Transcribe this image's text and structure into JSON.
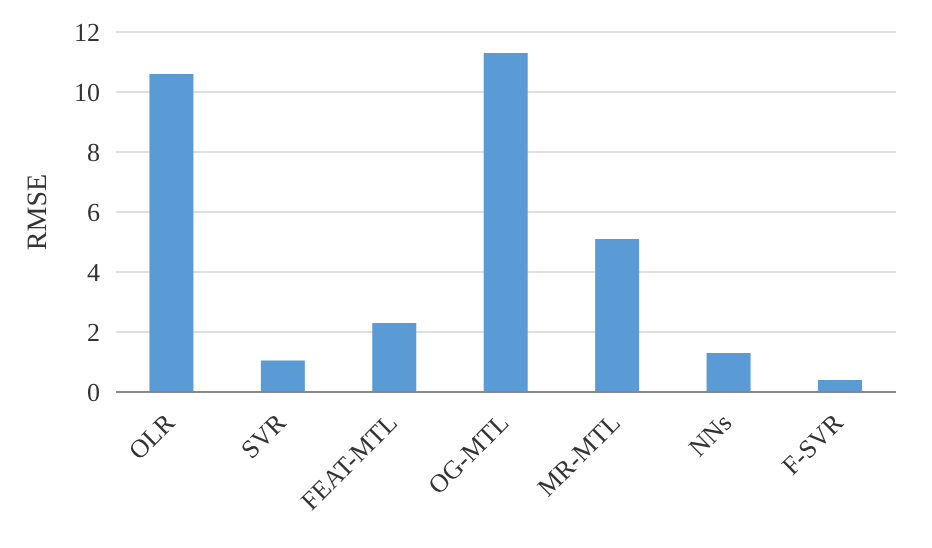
{
  "chart_data": {
    "type": "bar",
    "ylabel": "RMSE",
    "categories": [
      "OLR",
      "SVR",
      "FEAT-MTL",
      "OG-MTL",
      "MR-MTL",
      "NNs",
      "F-SVR"
    ],
    "values": [
      10.6,
      1.05,
      2.3,
      11.3,
      5.1,
      1.3,
      0.4
    ],
    "color": "#5b9bd5",
    "ylim": [
      0,
      12
    ],
    "yticks": [
      0,
      2,
      4,
      6,
      8,
      10,
      12
    ],
    "grid": "y"
  }
}
